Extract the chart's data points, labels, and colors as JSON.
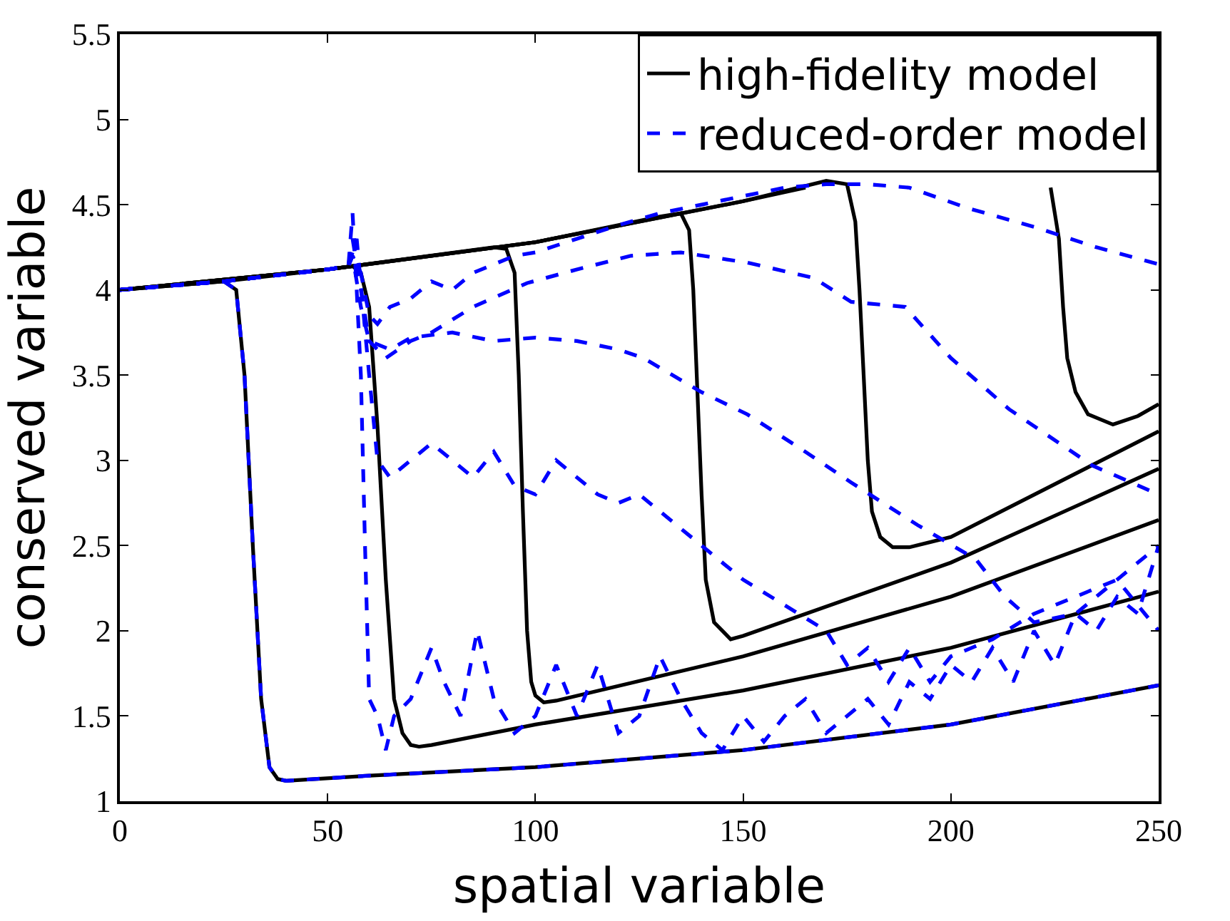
{
  "chart_data": {
    "type": "line",
    "xlabel": "spatial variable",
    "ylabel": "conserved variable",
    "xlim": [
      0,
      250
    ],
    "xticks": [
      0,
      50,
      100,
      150,
      200,
      250
    ],
    "ylim": [
      1,
      5.5
    ],
    "yticks": [
      1,
      1.5,
      2,
      2.5,
      3,
      3.5,
      4,
      4.5,
      5,
      5.5
    ],
    "legend": "top right",
    "marker": "none",
    "series": [
      {
        "name": "high-fidelity model",
        "color": "#000000",
        "line_style": "solid",
        "x": [
          0,
          25,
          28,
          30,
          32,
          34,
          36,
          38,
          40,
          60,
          100,
          150,
          200,
          250
        ],
        "values": [
          4,
          4.05,
          4.0,
          3.5,
          2.5,
          1.6,
          1.2,
          1.13,
          1.12,
          1.15,
          1.2,
          1.3,
          1.45,
          1.68
        ]
      },
      {
        "color": "#000000",
        "line_style": "solid",
        "x": [
          0,
          25,
          50,
          56,
          58,
          60,
          62,
          64,
          66,
          68,
          70,
          72,
          75,
          100,
          150,
          200,
          250
        ],
        "values": [
          4,
          4.05,
          4.12,
          4.14,
          4.1,
          3.9,
          3.2,
          2.3,
          1.6,
          1.4,
          1.33,
          1.32,
          1.33,
          1.45,
          1.65,
          1.9,
          2.23
        ]
      },
      {
        "color": "#000000",
        "line_style": "solid",
        "x": [
          0,
          50,
          90,
          93,
          95,
          96,
          97,
          98,
          99,
          100,
          102,
          105,
          150,
          200,
          250
        ],
        "values": [
          4,
          4.12,
          4.25,
          4.24,
          4.1,
          3.5,
          2.7,
          2.0,
          1.7,
          1.62,
          1.58,
          1.59,
          1.85,
          2.2,
          2.65
        ]
      },
      {
        "color": "#000000",
        "line_style": "solid",
        "x": [
          0,
          50,
          100,
          130,
          135,
          137,
          138,
          139,
          140,
          141,
          143,
          147,
          150,
          200,
          250
        ],
        "values": [
          4,
          4.12,
          4.28,
          4.43,
          4.45,
          4.35,
          4.0,
          3.4,
          2.8,
          2.3,
          2.05,
          1.95,
          1.97,
          2.4,
          2.95
        ]
      },
      {
        "color": "#000000",
        "line_style": "solid",
        "x": [
          0,
          50,
          100,
          150,
          170,
          175,
          177,
          178,
          179,
          180,
          181,
          183,
          186,
          190,
          200,
          250
        ],
        "values": [
          4,
          4.12,
          4.28,
          4.52,
          4.64,
          4.62,
          4.4,
          4.0,
          3.5,
          3.0,
          2.7,
          2.55,
          2.49,
          2.49,
          2.55,
          3.17
        ]
      },
      {
        "color": "#000000",
        "line_style": "solid",
        "x": [
          0,
          50,
          100,
          150,
          165,
          195,
          224,
          226,
          227,
          228,
          230,
          233,
          239,
          245,
          250
        ],
        "values": [
          4,
          4.12,
          4.28,
          4.52,
          4.6,
          null,
          4.6,
          4.3,
          3.9,
          3.6,
          3.4,
          3.27,
          3.21,
          3.26,
          3.33
        ]
      },
      {
        "name": "reduced-order model",
        "color": "#0000ff",
        "line_style": "dashed",
        "x": [
          0,
          25,
          28,
          30,
          32,
          34,
          36,
          38,
          40,
          60,
          100,
          150,
          200,
          250
        ],
        "values": [
          4,
          4.05,
          4.0,
          3.5,
          2.5,
          1.6,
          1.2,
          1.13,
          1.12,
          1.15,
          1.2,
          1.3,
          1.45,
          1.68
        ]
      },
      {
        "color": "#0000ff",
        "line_style": "dashed",
        "x": [
          0,
          25,
          50,
          55,
          56,
          57,
          58,
          59,
          60,
          62,
          64,
          66,
          70,
          75,
          78,
          82,
          86,
          90,
          95,
          100,
          105,
          110,
          115,
          120,
          125,
          130,
          135,
          140,
          145,
          150,
          155,
          160,
          165,
          170,
          175,
          180,
          185,
          190,
          195,
          200,
          205,
          210,
          215,
          220,
          225,
          230,
          235,
          240,
          245,
          250
        ],
        "values": [
          4,
          4.05,
          4.12,
          4.14,
          4.45,
          4.0,
          3.5,
          2.5,
          1.6,
          1.5,
          1.3,
          1.5,
          1.6,
          1.9,
          1.7,
          1.5,
          2.0,
          1.6,
          1.4,
          1.5,
          1.8,
          1.5,
          1.8,
          1.4,
          1.5,
          1.85,
          1.6,
          1.4,
          1.3,
          1.5,
          1.35,
          1.5,
          1.6,
          1.4,
          1.5,
          1.6,
          1.45,
          1.7,
          1.6,
          1.8,
          1.7,
          1.9,
          1.7,
          2.0,
          1.8,
          2.1,
          2.0,
          2.2,
          2.1,
          2.5
        ]
      },
      {
        "color": "#0000ff",
        "line_style": "dashed",
        "x": [
          0,
          25,
          50,
          55,
          57,
          60,
          62,
          65,
          70,
          75,
          80,
          85,
          90,
          95,
          100,
          105,
          110,
          115,
          120,
          125,
          140,
          150,
          160,
          170,
          175,
          180,
          185,
          190,
          195,
          200,
          210,
          220,
          230,
          240,
          250
        ],
        "values": [
          4,
          4.05,
          4.12,
          4.14,
          4.3,
          3.5,
          3.0,
          2.9,
          3.0,
          3.1,
          3.0,
          2.9,
          3.05,
          2.85,
          2.8,
          3.0,
          2.9,
          2.8,
          2.75,
          2.8,
          2.5,
          2.3,
          2.15,
          2.0,
          1.8,
          1.9,
          1.7,
          1.9,
          1.7,
          1.85,
          1.95,
          2.1,
          2.2,
          2.3,
          2.0
        ]
      },
      {
        "color": "#0000ff",
        "line_style": "dashed",
        "x": [
          0,
          25,
          50,
          55,
          56,
          58,
          60,
          65,
          70,
          80,
          90,
          100,
          110,
          120,
          126,
          140,
          151,
          165,
          176,
          192,
          206,
          213,
          220,
          230,
          240,
          250
        ],
        "values": [
          4,
          4.05,
          4.12,
          4.14,
          4.2,
          3.9,
          3.7,
          3.65,
          3.72,
          3.75,
          3.7,
          3.72,
          3.7,
          3.65,
          3.6,
          3.4,
          3.27,
          3.05,
          2.87,
          2.62,
          2.42,
          2.2,
          2.05,
          2.1,
          2.3,
          2.5
        ]
      },
      {
        "color": "#0000ff",
        "line_style": "dashed",
        "x": [
          0,
          25,
          50,
          55,
          56,
          58,
          60,
          64,
          70,
          75,
          85,
          98,
          110,
          123,
          135,
          151,
          167,
          176,
          189,
          200,
          214,
          234,
          250
        ],
        "values": [
          4,
          4.05,
          4.12,
          4.14,
          4.3,
          4.0,
          3.7,
          3.6,
          3.7,
          3.75,
          3.9,
          4.04,
          4.12,
          4.2,
          4.22,
          4.16,
          4.07,
          3.93,
          3.9,
          3.6,
          3.3,
          2.97,
          2.8
        ]
      },
      {
        "color": "#0000ff",
        "line_style": "dashed",
        "x": [
          0,
          25,
          50,
          55,
          56,
          58,
          60,
          62,
          65,
          70,
          75,
          80,
          85,
          90,
          95,
          100,
          110,
          120,
          130,
          140,
          150,
          160,
          170,
          180,
          190,
          204,
          220,
          235,
          250
        ],
        "values": [
          4,
          4.05,
          4.12,
          4.14,
          4.2,
          4.1,
          3.85,
          3.8,
          3.9,
          3.95,
          4.05,
          4.0,
          4.1,
          4.15,
          4.2,
          4.22,
          4.3,
          4.38,
          4.45,
          4.5,
          4.55,
          4.6,
          4.62,
          4.62,
          4.6,
          4.48,
          4.37,
          4.25,
          4.15
        ]
      }
    ]
  }
}
